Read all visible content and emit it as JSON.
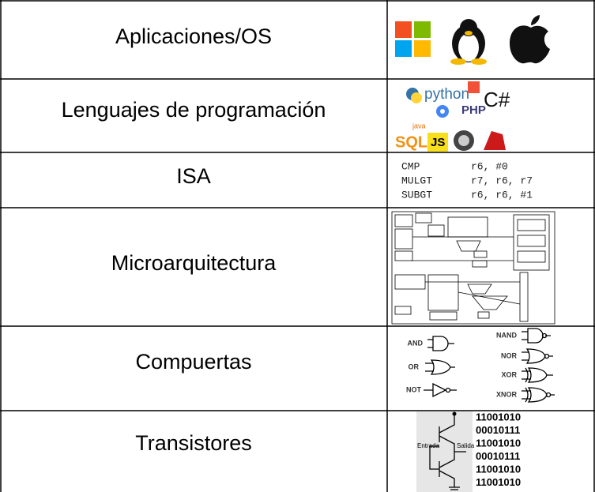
{
  "rows": [
    {
      "label": "Aplicaciones/OS"
    },
    {
      "label": "Lenguajes de programación",
      "logos": [
        "python",
        "C#",
        "PHP",
        "java",
        "SQL",
        "JS"
      ]
    },
    {
      "label": "ISA",
      "code": [
        [
          "CMP",
          "r6, #0"
        ],
        [
          "MULGT",
          "r7, r6, r7"
        ],
        [
          "SUBGT",
          "r6, r6, #1"
        ]
      ]
    },
    {
      "label": "Microarquitectura"
    },
    {
      "label": "Compuertas",
      "gates": [
        "AND",
        "OR",
        "NOT",
        "NAND",
        "NOR",
        "XOR",
        "XNOR"
      ]
    },
    {
      "label": "Transistores",
      "input": "Entrada",
      "output": "Salida",
      "bits": [
        "11001010",
        "00010111",
        "11001010",
        "00010111",
        "11001010",
        "11001010"
      ]
    }
  ]
}
